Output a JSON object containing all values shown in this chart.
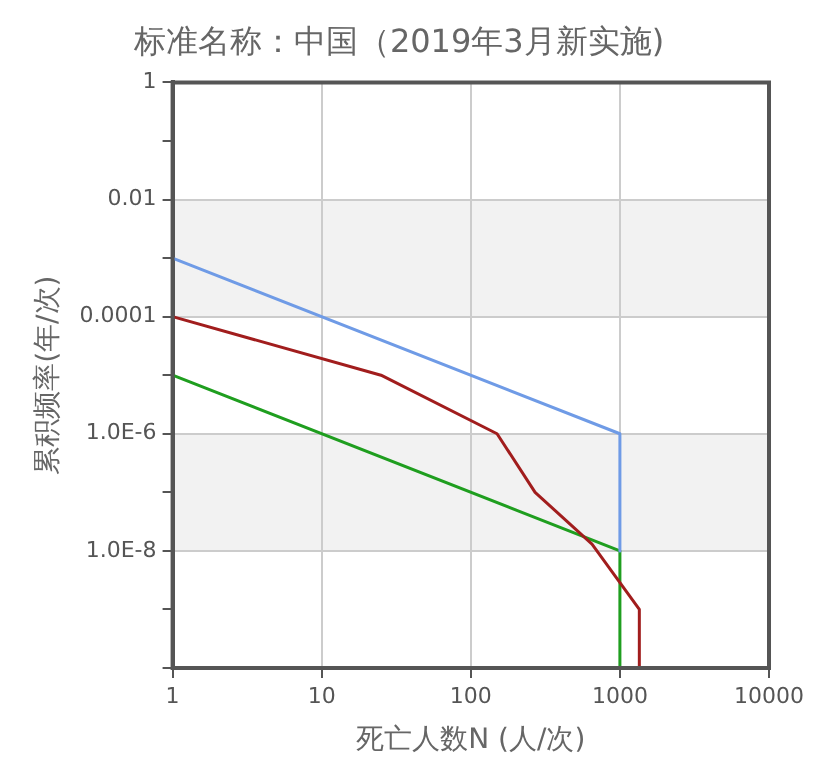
{
  "chart_data": {
    "type": "line",
    "title": "标准名称：中国（2019年3月新实施)",
    "xlabel": "死亡人数N (人/次)",
    "ylabel": "累积频率(年/次)",
    "log": "xy",
    "grid": true,
    "legend": false,
    "marker": "none",
    "line_style": "solid",
    "xlim": [
      1,
      10000
    ],
    "ylim": [
      1e-10,
      1
    ],
    "xticks": [
      1,
      10,
      100,
      1000,
      10000
    ],
    "yticks": [
      1,
      {
        "value": 0.1,
        "label": null
      },
      0.01,
      {
        "value": 0.001,
        "label": null
      },
      0.0001,
      {
        "value": 1e-05,
        "label": null
      },
      {
        "value": 1e-06,
        "label": "1.0E-6"
      },
      {
        "value": 1e-07,
        "label": null
      },
      {
        "value": 1e-08,
        "label": "1.0E-8"
      },
      {
        "value": 1e-09,
        "label": null
      },
      {
        "value": 1e-10,
        "label": null
      }
    ],
    "bands": [
      {
        "axis": "y",
        "from": 0.0001,
        "to": 0.01,
        "color": "#f2f2f2"
      },
      {
        "axis": "y",
        "from": 1e-08,
        "to": 1e-06,
        "color": "#f2f2f2"
      }
    ],
    "series": [
      {
        "color": "#6f9be6",
        "x": [
          1,
          1000,
          1000
        ],
        "values": [
          0.001,
          1e-06,
          1e-08
        ]
      },
      {
        "color": "#a11d1d",
        "x": [
          1,
          25,
          150,
          270,
          650,
          1350,
          1350
        ],
        "values": [
          0.0001,
          1e-05,
          1e-06,
          1e-07,
          1.3e-08,
          1e-09,
          1e-10
        ]
      },
      {
        "color": "#1f9e1f",
        "x": [
          1,
          1000,
          1000
        ],
        "values": [
          1e-05,
          1e-08,
          1e-10
        ]
      }
    ]
  }
}
